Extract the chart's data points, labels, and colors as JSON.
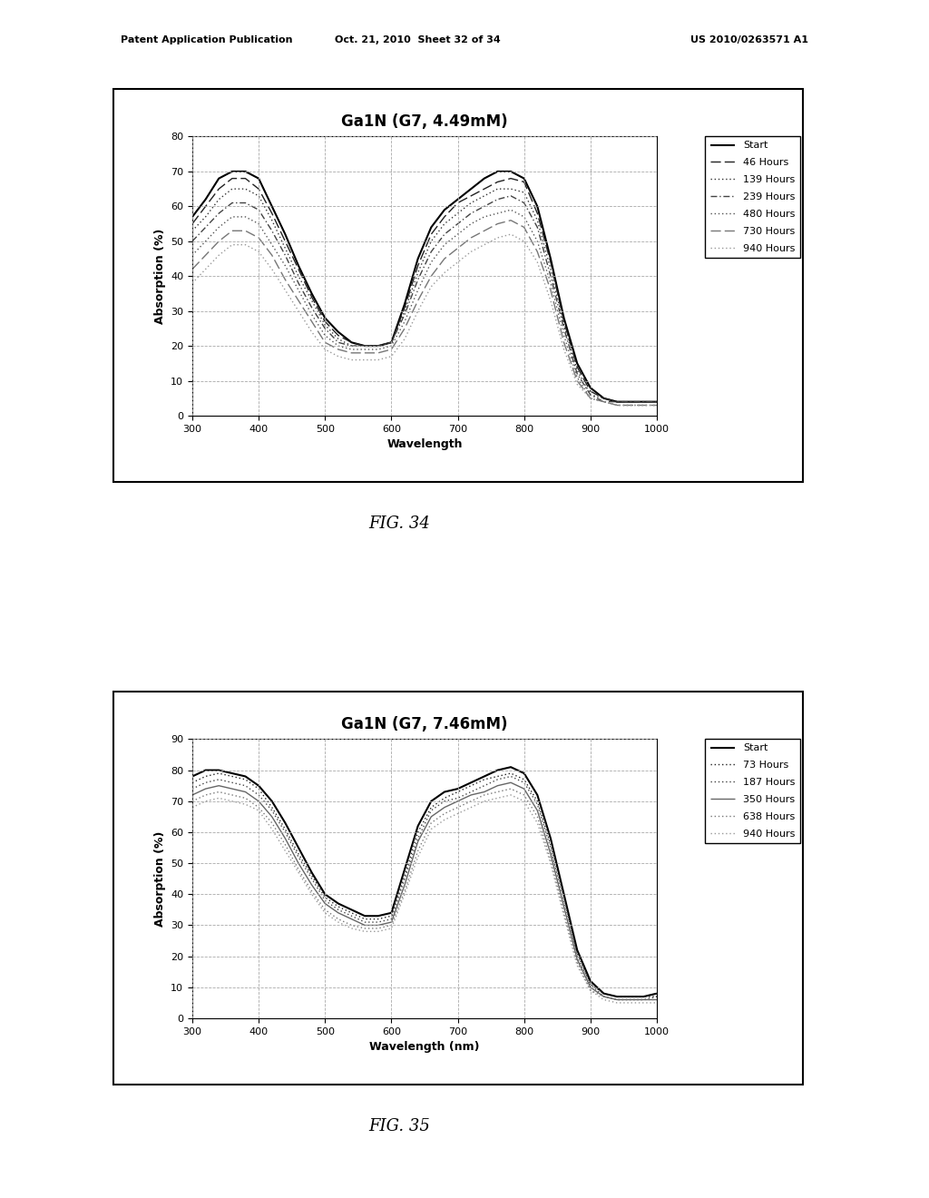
{
  "fig_width": 10.24,
  "fig_height": 13.2,
  "background_color": "#ffffff",
  "header_text_left": "Patent Application Publication",
  "header_text_mid": "Oct. 21, 2010  Sheet 32 of 34",
  "header_text_right": "US 2010/0263571 A1",
  "fig34_label": "FIG. 34",
  "fig35_label": "FIG. 35",
  "chart1": {
    "title": "Ga1N (G7, 4.49mM)",
    "xlabel": "Wavelength",
    "ylabel": "Absorption (%)",
    "xlim": [
      300,
      1000
    ],
    "ylim": [
      0,
      80
    ],
    "yticks": [
      0,
      10,
      20,
      30,
      40,
      50,
      60,
      70,
      80
    ],
    "xticks": [
      300,
      400,
      500,
      600,
      700,
      800,
      900,
      1000
    ],
    "legend_labels": [
      "Start",
      "46 Hours",
      "139 Hours",
      "239 Hours",
      "480 Hours",
      "730 Hours",
      "940 Hours"
    ],
    "legend_styles": [
      "solid",
      "dashed",
      "dotted",
      "dashdot",
      "dotted2",
      "dashed2",
      "dotted3"
    ],
    "curves": [
      {
        "label": "Start",
        "style": "solid",
        "color": "#000000",
        "lw": 1.5,
        "x": [
          300,
          320,
          340,
          360,
          380,
          400,
          420,
          440,
          460,
          480,
          500,
          520,
          540,
          560,
          580,
          600,
          620,
          640,
          660,
          680,
          700,
          720,
          740,
          760,
          780,
          800,
          820,
          840,
          860,
          880,
          900,
          920,
          940,
          960,
          980,
          1000
        ],
        "y": [
          57,
          62,
          68,
          70,
          70,
          68,
          60,
          52,
          43,
          35,
          28,
          24,
          21,
          20,
          20,
          21,
          32,
          45,
          54,
          59,
          62,
          65,
          68,
          70,
          70,
          68,
          60,
          45,
          28,
          15,
          8,
          5,
          4,
          4,
          4,
          4
        ]
      },
      {
        "label": "46 Hours",
        "style": "ldash",
        "color": "#222222",
        "lw": 1.0,
        "x": [
          300,
          320,
          340,
          360,
          380,
          400,
          420,
          440,
          460,
          480,
          500,
          520,
          540,
          560,
          580,
          600,
          620,
          640,
          660,
          680,
          700,
          720,
          740,
          760,
          780,
          800,
          820,
          840,
          860,
          880,
          900,
          920,
          940,
          960,
          980,
          1000
        ],
        "y": [
          55,
          60,
          65,
          68,
          68,
          65,
          58,
          50,
          42,
          34,
          27,
          23,
          21,
          20,
          20,
          21,
          31,
          43,
          52,
          57,
          61,
          63,
          65,
          67,
          68,
          67,
          58,
          44,
          27,
          14,
          7,
          5,
          4,
          4,
          4,
          4
        ]
      },
      {
        "label": "139 Hours",
        "style": "sdot",
        "color": "#333333",
        "lw": 1.0,
        "x": [
          300,
          320,
          340,
          360,
          380,
          400,
          420,
          440,
          460,
          480,
          500,
          520,
          540,
          560,
          580,
          600,
          620,
          640,
          660,
          680,
          700,
          720,
          740,
          760,
          780,
          800,
          820,
          840,
          860,
          880,
          900,
          920,
          940,
          960,
          980,
          1000
        ],
        "y": [
          53,
          57,
          62,
          65,
          65,
          63,
          56,
          48,
          40,
          33,
          26,
          22,
          20,
          20,
          20,
          21,
          30,
          41,
          50,
          55,
          58,
          61,
          63,
          65,
          65,
          64,
          56,
          42,
          26,
          13,
          6,
          5,
          4,
          4,
          4,
          4
        ]
      },
      {
        "label": "239 Hours",
        "style": "ldashdot",
        "color": "#444444",
        "lw": 1.0,
        "x": [
          300,
          320,
          340,
          360,
          380,
          400,
          420,
          440,
          460,
          480,
          500,
          520,
          540,
          560,
          580,
          600,
          620,
          640,
          660,
          680,
          700,
          720,
          740,
          760,
          780,
          800,
          820,
          840,
          860,
          880,
          900,
          920,
          940,
          960,
          980,
          1000
        ],
        "y": [
          50,
          54,
          58,
          61,
          61,
          59,
          53,
          46,
          38,
          31,
          25,
          21,
          20,
          20,
          20,
          21,
          29,
          39,
          47,
          52,
          55,
          58,
          60,
          62,
          63,
          61,
          54,
          40,
          25,
          12,
          6,
          4,
          4,
          4,
          4,
          4
        ]
      },
      {
        "label": "480 Hours",
        "style": "sdot",
        "color": "#555555",
        "lw": 1.0,
        "x": [
          300,
          320,
          340,
          360,
          380,
          400,
          420,
          440,
          460,
          480,
          500,
          520,
          540,
          560,
          580,
          600,
          620,
          640,
          660,
          680,
          700,
          720,
          740,
          760,
          780,
          800,
          820,
          840,
          860,
          880,
          900,
          920,
          940,
          960,
          980,
          1000
        ],
        "y": [
          46,
          50,
          54,
          57,
          57,
          55,
          49,
          43,
          36,
          29,
          23,
          20,
          19,
          19,
          19,
          20,
          27,
          36,
          44,
          49,
          52,
          55,
          57,
          58,
          59,
          57,
          50,
          38,
          23,
          11,
          5,
          4,
          3,
          3,
          3,
          3
        ]
      },
      {
        "label": "730 Hours",
        "style": "ldash",
        "color": "#777777",
        "lw": 1.0,
        "x": [
          300,
          320,
          340,
          360,
          380,
          400,
          420,
          440,
          460,
          480,
          500,
          520,
          540,
          560,
          580,
          600,
          620,
          640,
          660,
          680,
          700,
          720,
          740,
          760,
          780,
          800,
          820,
          840,
          860,
          880,
          900,
          920,
          940,
          960,
          980,
          1000
        ],
        "y": [
          42,
          46,
          50,
          53,
          53,
          51,
          46,
          39,
          33,
          27,
          21,
          19,
          18,
          18,
          18,
          19,
          25,
          33,
          40,
          45,
          48,
          51,
          53,
          55,
          56,
          54,
          47,
          36,
          21,
          10,
          5,
          4,
          3,
          3,
          3,
          3
        ]
      },
      {
        "label": "940 Hours",
        "style": "sdot",
        "color": "#999999",
        "lw": 1.0,
        "x": [
          300,
          320,
          340,
          360,
          380,
          400,
          420,
          440,
          460,
          480,
          500,
          520,
          540,
          560,
          580,
          600,
          620,
          640,
          660,
          680,
          700,
          720,
          740,
          760,
          780,
          800,
          820,
          840,
          860,
          880,
          900,
          920,
          940,
          960,
          980,
          1000
        ],
        "y": [
          38,
          42,
          46,
          49,
          49,
          47,
          42,
          36,
          30,
          24,
          19,
          17,
          16,
          16,
          16,
          17,
          22,
          30,
          37,
          41,
          44,
          47,
          49,
          51,
          52,
          50,
          44,
          33,
          19,
          9,
          5,
          4,
          3,
          3,
          3,
          3
        ]
      }
    ]
  },
  "chart2": {
    "title": "Ga1N (G7, 7.46mM)",
    "xlabel": "Wavelength (nm)",
    "ylabel": "Absorption (%)",
    "xlim": [
      300,
      1000
    ],
    "ylim": [
      0,
      90
    ],
    "yticks": [
      0,
      10,
      20,
      30,
      40,
      50,
      60,
      70,
      80,
      90
    ],
    "xticks": [
      300,
      400,
      500,
      600,
      700,
      800,
      900,
      1000
    ],
    "legend_labels": [
      "Start",
      "73 Hours",
      "187 Hours",
      "350 Hours",
      "638 Hours",
      "940 Hours"
    ],
    "curves": [
      {
        "label": "Start",
        "style": "solid",
        "color": "#000000",
        "lw": 1.5,
        "x": [
          300,
          320,
          340,
          360,
          380,
          400,
          420,
          440,
          460,
          480,
          500,
          520,
          540,
          560,
          580,
          600,
          620,
          640,
          660,
          680,
          700,
          720,
          740,
          760,
          780,
          800,
          820,
          840,
          860,
          880,
          900,
          920,
          940,
          960,
          980,
          1000
        ],
        "y": [
          78,
          80,
          80,
          79,
          78,
          75,
          70,
          63,
          55,
          47,
          40,
          37,
          35,
          33,
          33,
          34,
          48,
          62,
          70,
          73,
          74,
          76,
          78,
          80,
          81,
          79,
          72,
          58,
          40,
          22,
          12,
          8,
          7,
          7,
          7,
          8
        ]
      },
      {
        "label": "73 Hours",
        "style": "sdot",
        "color": "#222222",
        "lw": 1.0,
        "x": [
          300,
          320,
          340,
          360,
          380,
          400,
          420,
          440,
          460,
          480,
          500,
          520,
          540,
          560,
          580,
          600,
          620,
          640,
          660,
          680,
          700,
          720,
          740,
          760,
          780,
          800,
          820,
          840,
          860,
          880,
          900,
          920,
          940,
          960,
          980,
          1000
        ],
        "y": [
          76,
          78,
          79,
          78,
          77,
          74,
          68,
          61,
          53,
          46,
          39,
          36,
          34,
          32,
          32,
          33,
          46,
          60,
          68,
          71,
          73,
          75,
          77,
          78,
          79,
          77,
          70,
          56,
          39,
          21,
          11,
          8,
          7,
          7,
          7,
          7
        ]
      },
      {
        "label": "187 Hours",
        "style": "sdot",
        "color": "#444444",
        "lw": 1.0,
        "x": [
          300,
          320,
          340,
          360,
          380,
          400,
          420,
          440,
          460,
          480,
          500,
          520,
          540,
          560,
          580,
          600,
          620,
          640,
          660,
          680,
          700,
          720,
          740,
          760,
          780,
          800,
          820,
          840,
          860,
          880,
          900,
          920,
          940,
          960,
          980,
          1000
        ],
        "y": [
          74,
          76,
          77,
          76,
          75,
          72,
          67,
          60,
          52,
          45,
          38,
          35,
          33,
          31,
          31,
          32,
          45,
          58,
          67,
          70,
          71,
          73,
          75,
          77,
          78,
          76,
          69,
          55,
          37,
          20,
          11,
          7,
          6,
          6,
          6,
          7
        ]
      },
      {
        "label": "350 Hours",
        "style": "solid",
        "color": "#666666",
        "lw": 1.0,
        "x": [
          300,
          320,
          340,
          360,
          380,
          400,
          420,
          440,
          460,
          480,
          500,
          520,
          540,
          560,
          580,
          600,
          620,
          640,
          660,
          680,
          700,
          720,
          740,
          760,
          780,
          800,
          820,
          840,
          860,
          880,
          900,
          920,
          940,
          960,
          980,
          1000
        ],
        "y": [
          72,
          74,
          75,
          74,
          73,
          70,
          65,
          58,
          50,
          43,
          37,
          34,
          32,
          30,
          30,
          31,
          43,
          57,
          65,
          68,
          70,
          72,
          73,
          75,
          76,
          74,
          67,
          53,
          36,
          19,
          10,
          7,
          6,
          6,
          6,
          6
        ]
      },
      {
        "label": "638 Hours",
        "style": "sdot",
        "color": "#777777",
        "lw": 1.0,
        "x": [
          300,
          320,
          340,
          360,
          380,
          400,
          420,
          440,
          460,
          480,
          500,
          520,
          540,
          560,
          580,
          600,
          620,
          640,
          660,
          680,
          700,
          720,
          740,
          760,
          780,
          800,
          820,
          840,
          860,
          880,
          900,
          920,
          940,
          960,
          980,
          1000
        ],
        "y": [
          70,
          72,
          73,
          72,
          71,
          68,
          63,
          56,
          48,
          41,
          35,
          32,
          30,
          29,
          29,
          30,
          41,
          54,
          63,
          66,
          68,
          70,
          72,
          73,
          74,
          72,
          65,
          51,
          34,
          18,
          9,
          7,
          6,
          6,
          6,
          6
        ]
      },
      {
        "label": "940 Hours",
        "style": "sdot",
        "color": "#999999",
        "lw": 1.0,
        "x": [
          300,
          320,
          340,
          360,
          380,
          400,
          420,
          440,
          460,
          480,
          500,
          520,
          540,
          560,
          580,
          600,
          620,
          640,
          660,
          680,
          700,
          720,
          740,
          760,
          780,
          800,
          820,
          840,
          860,
          880,
          900,
          920,
          940,
          960,
          980,
          1000
        ],
        "y": [
          68,
          70,
          71,
          70,
          69,
          67,
          61,
          54,
          47,
          40,
          34,
          31,
          29,
          28,
          28,
          29,
          40,
          52,
          61,
          64,
          66,
          68,
          70,
          71,
          72,
          70,
          63,
          50,
          33,
          17,
          9,
          6,
          5,
          5,
          5,
          5
        ]
      }
    ]
  }
}
